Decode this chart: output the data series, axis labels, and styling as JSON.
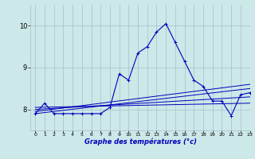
{
  "xlabel": "Graphe des températures (°c)",
  "xlim": [
    -0.5,
    23
  ],
  "ylim": [
    7.5,
    10.5
  ],
  "yticks": [
    8,
    9,
    10
  ],
  "xticks": [
    0,
    1,
    2,
    3,
    4,
    5,
    6,
    7,
    8,
    9,
    10,
    11,
    12,
    13,
    14,
    15,
    16,
    17,
    18,
    19,
    20,
    21,
    22,
    23
  ],
  "background_color": "#cce8e8",
  "line_color": "#0000bb",
  "grid_color": "#aabccc",
  "series_main_x": [
    0,
    1,
    2,
    3,
    4,
    5,
    6,
    7,
    8,
    9,
    10,
    11,
    12,
    13,
    14,
    15,
    16,
    17,
    18,
    19,
    20,
    21,
    22,
    23
  ],
  "series_main_y": [
    7.9,
    8.15,
    7.9,
    7.9,
    7.9,
    7.9,
    7.9,
    7.9,
    8.05,
    8.85,
    8.7,
    9.35,
    9.5,
    9.85,
    10.05,
    9.6,
    9.15,
    8.7,
    8.55,
    8.2,
    8.2,
    7.85,
    8.35,
    8.4
  ],
  "ref_lines": [
    {
      "x": [
        0,
        23
      ],
      "y": [
        7.9,
        8.5
      ]
    },
    {
      "x": [
        0,
        23
      ],
      "y": [
        7.95,
        8.6
      ]
    },
    {
      "x": [
        0,
        23
      ],
      "y": [
        8.0,
        8.3
      ]
    },
    {
      "x": [
        0,
        23
      ],
      "y": [
        8.05,
        8.15
      ]
    }
  ]
}
